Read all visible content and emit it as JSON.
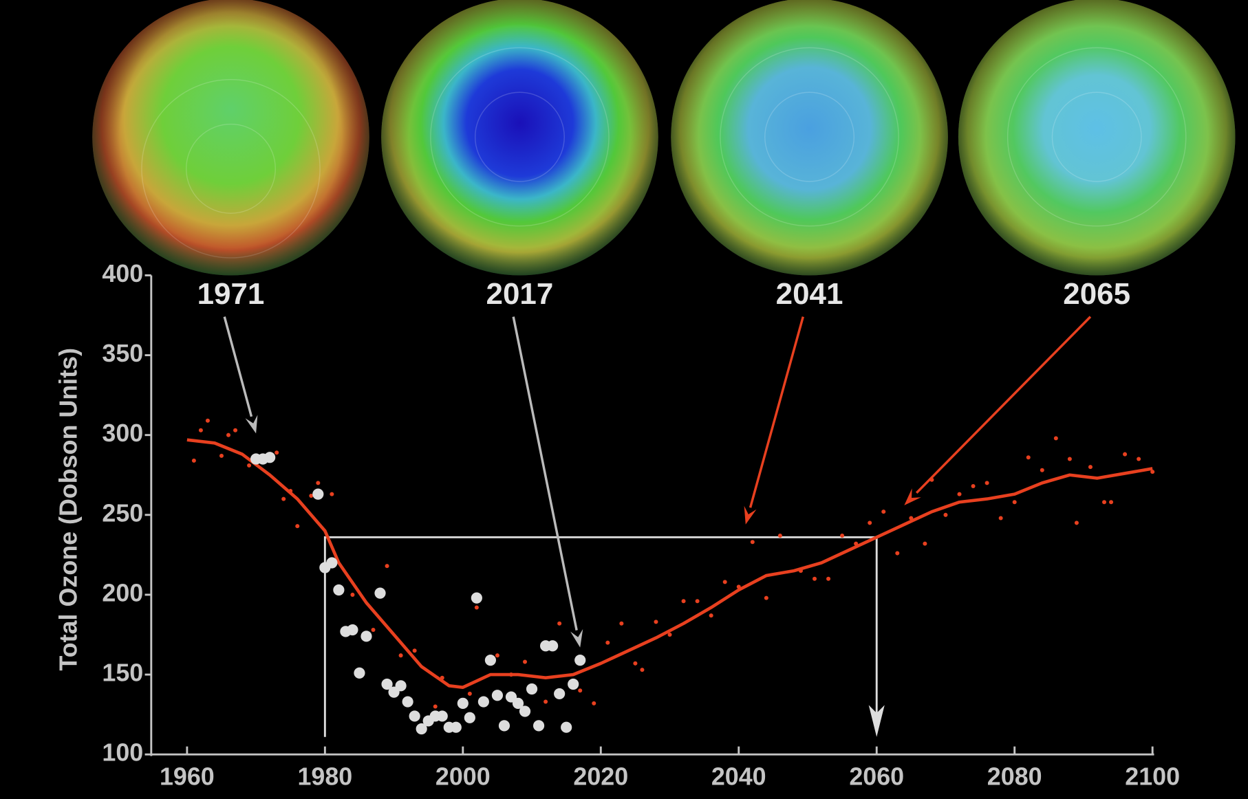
{
  "chart_data": {
    "type": "line",
    "ylabel": "Total Ozone (Dobson Units)",
    "xlim": [
      1960,
      2100
    ],
    "xticks": [
      1960,
      1980,
      2000,
      2020,
      2040,
      2060,
      2080,
      2100
    ],
    "ylim": [
      100,
      400
    ],
    "yticks": [
      100,
      150,
      200,
      250,
      300,
      350,
      400
    ],
    "series": [
      {
        "kind": "line",
        "color": "#e8401f",
        "x": [
          1960,
          1964,
          1968,
          1972,
          1976,
          1980,
          1982,
          1986,
          1990,
          1994,
          1998,
          2000,
          2004,
          2008,
          2012,
          2016,
          2020,
          2024,
          2028,
          2032,
          2036,
          2040,
          2044,
          2048,
          2052,
          2056,
          2060,
          2064,
          2068,
          2072,
          2076,
          2080,
          2084,
          2088,
          2092,
          2096,
          2100
        ],
        "values": [
          297,
          295,
          288,
          275,
          260,
          240,
          220,
          195,
          175,
          155,
          143,
          142,
          150,
          150,
          148,
          150,
          157,
          165,
          173,
          182,
          192,
          203,
          212,
          215,
          220,
          228,
          236,
          244,
          252,
          258,
          260,
          263,
          270,
          275,
          273,
          276,
          279
        ]
      },
      {
        "kind": "dots",
        "color": "#e8401f",
        "x": [
          1961,
          1962,
          1963,
          1965,
          1966,
          1967,
          1969,
          1973,
          1974,
          1975,
          1976,
          1978,
          1979,
          1981,
          1984,
          1987,
          1989,
          1991,
          1993,
          1996,
          1997,
          2001,
          2002,
          2005,
          2007,
          2009,
          2012,
          2014,
          2017,
          2019,
          2021,
          2023,
          2025,
          2026,
          2028,
          2030,
          2032,
          2034,
          2036,
          2038,
          2040,
          2042,
          2044,
          2046,
          2049,
          2051,
          2053,
          2055,
          2057,
          2059,
          2061,
          2063,
          2065,
          2067,
          2068,
          2070,
          2072,
          2074,
          2076,
          2078,
          2080,
          2082,
          2084,
          2086,
          2088,
          2089,
          2091,
          2093,
          2094,
          2096,
          2098,
          2100
        ],
        "values": [
          284,
          303,
          309,
          287,
          300,
          303,
          281,
          289,
          260,
          265,
          243,
          262,
          270,
          263,
          200,
          178,
          218,
          162,
          165,
          130,
          148,
          138,
          192,
          162,
          150,
          158,
          133,
          182,
          140,
          132,
          170,
          182,
          157,
          153,
          183,
          175,
          196,
          196,
          187,
          208,
          205,
          233,
          198,
          237,
          215,
          210,
          210,
          237,
          232,
          245,
          252,
          226,
          248,
          232,
          272,
          250,
          263,
          268,
          270,
          248,
          258,
          286,
          278,
          298,
          285,
          245,
          280,
          258,
          258,
          288,
          285,
          277
        ]
      },
      {
        "kind": "dots-large",
        "color": "#dddddd",
        "x": [
          1970,
          1971,
          1972,
          1979,
          1980,
          1981,
          1982,
          1983,
          1984,
          1985,
          1986,
          1988,
          1989,
          1990,
          1991,
          1992,
          1993,
          1994,
          1995,
          1996,
          1997,
          1998,
          1999,
          2000,
          2001,
          2002,
          2003,
          2004,
          2005,
          2006,
          2007,
          2008,
          2009,
          2010,
          2011,
          2012,
          2013,
          2014,
          2015,
          2016,
          2017
        ],
        "values": [
          285,
          285,
          286,
          263,
          217,
          220,
          203,
          177,
          178,
          151,
          174,
          201,
          144,
          139,
          143,
          133,
          124,
          116,
          121,
          124,
          124,
          117,
          117,
          132,
          123,
          198,
          133,
          159,
          137,
          118,
          136,
          132,
          127,
          141,
          118,
          168,
          168,
          138,
          117,
          144,
          159
        ]
      }
    ],
    "reference": {
      "x0": 1980,
      "x1": 2060,
      "y": 236,
      "color": "#dddddd"
    },
    "annotations": [
      {
        "label": "1971",
        "color": "#bbbbbb",
        "x": 1970,
        "y": 297
      },
      {
        "label": "2017",
        "color": "#bbbbbb",
        "x": 2017,
        "y": 163
      },
      {
        "label": "2041",
        "color": "#e8401f",
        "x": 2041,
        "y": 240
      },
      {
        "label": "2065",
        "color": "#e8401f",
        "x": 2064,
        "y": 252
      }
    ]
  }
}
